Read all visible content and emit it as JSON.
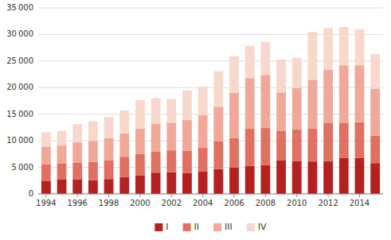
{
  "chart_data": {
    "type": "bar",
    "stacked": true,
    "grid": true,
    "legend": "bottom",
    "categories": [
      "1994",
      null,
      "1996",
      null,
      "1998",
      null,
      "2000",
      null,
      "2002",
      null,
      "2004",
      null,
      "2006",
      null,
      "2008",
      null,
      "2010",
      null,
      "2012",
      null,
      "2014",
      null
    ],
    "series": [
      {
        "name": "I",
        "color": "#b52020",
        "values": [
          2400,
          2700,
          2700,
          2600,
          2800,
          3200,
          3500,
          4000,
          4100,
          3900,
          4200,
          4700,
          5000,
          5300,
          5400,
          6300,
          6200,
          6100,
          6200,
          6800,
          6800,
          5800
        ]
      },
      {
        "name": "II",
        "color": "#e07060",
        "values": [
          3200,
          3000,
          3200,
          3400,
          3500,
          3800,
          4000,
          4000,
          4100,
          4200,
          4500,
          5200,
          5500,
          7000,
          7000,
          5600,
          5900,
          6200,
          7200,
          6600,
          6700,
          5200
        ]
      },
      {
        "name": "III",
        "color": "#f0a898",
        "values": [
          3300,
          3400,
          3800,
          4000,
          4200,
          4400,
          4800,
          5200,
          5200,
          5800,
          6100,
          6500,
          8500,
          9500,
          10000,
          7200,
          7800,
          9200,
          10000,
          10800,
          10700,
          8800
        ]
      },
      {
        "name": "IV",
        "color": "#f8d8cc",
        "values": [
          2700,
          2800,
          3400,
          3700,
          4000,
          4300,
          5400,
          4800,
          4500,
          5600,
          5400,
          6700,
          6900,
          6100,
          6200,
          6200,
          5700,
          9000,
          7800,
          7200,
          6800,
          6500
        ]
      }
    ],
    "ylim": [
      0,
      35000
    ],
    "yticks": [
      0,
      {
        "value": 5000,
        "label": "5 000"
      },
      {
        "value": 10000,
        "label": "10 000"
      },
      {
        "value": 15000,
        "label": "15 000"
      },
      {
        "value": 20000,
        "label": "20 000"
      },
      {
        "value": 25000,
        "label": "25 000"
      },
      {
        "value": 30000,
        "label": "30 000"
      },
      {
        "value": 35000,
        "label": "35 000"
      }
    ]
  }
}
